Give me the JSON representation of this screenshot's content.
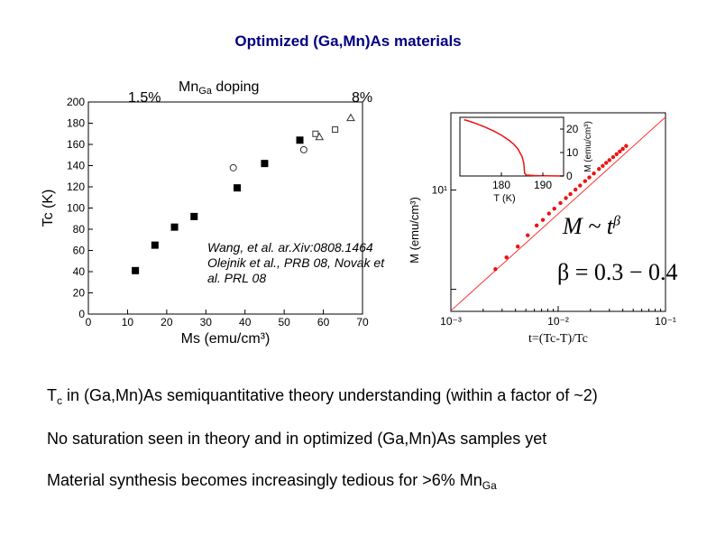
{
  "slide": {
    "title": "Optimized (Ga,Mn)As materials",
    "label_low": "1.5%",
    "label_doping_main": "Mn",
    "label_doping_sub": "Ga",
    "label_doping_rest": " doping",
    "label_high": "8%",
    "citation": "Wang, et al. ar.Xiv:0808.1464 Olejnik et al., PRB 08, Novak et al. PRL 08",
    "formula_1_main": "M",
    "formula_1_rest": "~ t",
    "formula_1_sup": "β",
    "formula_2": "β = 0.3 − 0.4",
    "caption_right": "t=(Tc-T)/Tc",
    "bullet_1_pre": "T",
    "bullet_1_sub": "c",
    "bullet_1_post": " in (Ga,Mn)As semiquantitative theory understanding (within a factor of ~2)",
    "bullet_2": "No saturation seen in theory and in optimized (Ga,Mn)As samples yet",
    "bullet_3_pre": "Material synthesis becomes increasingly tedious for >6% Mn",
    "bullet_3_sub": "Ga"
  },
  "chart_data": [
    {
      "type": "scatter",
      "xlabel": "Ms (emu/cm³)",
      "ylabel": "Tc (K)",
      "xlim": [
        0,
        70
      ],
      "ylim": [
        0,
        200
      ],
      "xticks": [
        0,
        10,
        20,
        30,
        40,
        50,
        60,
        70
      ],
      "yticks": [
        0,
        20,
        40,
        60,
        80,
        100,
        120,
        140,
        160,
        180,
        200
      ],
      "series": [
        {
          "marker": "filled-square",
          "x": [
            12,
            17,
            22,
            27,
            38,
            45,
            54
          ],
          "y": [
            41,
            65,
            82,
            92,
            119,
            142,
            164
          ]
        },
        {
          "marker": "open-circle",
          "x": [
            37,
            55
          ],
          "y": [
            138,
            155
          ]
        },
        {
          "marker": "open-square",
          "x": [
            58,
            63
          ],
          "y": [
            170,
            174
          ]
        },
        {
          "marker": "open-triangle",
          "x": [
            59,
            67
          ],
          "y": [
            167,
            185
          ]
        }
      ]
    },
    {
      "type": "scatter",
      "xlabel": "",
      "ylabel": "M (emu/cm³)",
      "xscale": "log",
      "yscale": "log",
      "xlim": [
        0.001,
        0.1
      ],
      "ylim": [
        0.6,
        60
      ],
      "xtick_labels": [
        "10⁻³",
        "10⁻²",
        "10⁻¹"
      ],
      "ytick_labels": [
        "10¹"
      ],
      "fit_line": true,
      "series": [
        {
          "marker": "red-dot",
          "x": [
            0.0026,
            0.0033,
            0.0042,
            0.0052,
            0.0063,
            0.0072,
            0.0082,
            0.0092,
            0.0105,
            0.0118,
            0.013,
            0.0145,
            0.016,
            0.0178,
            0.0195,
            0.0215,
            0.024,
            0.026,
            0.028,
            0.03,
            0.0325,
            0.035,
            0.0375,
            0.04,
            0.043
          ],
          "y": [
            1.6,
            2.1,
            2.7,
            3.5,
            4.4,
            5.0,
            5.8,
            6.5,
            7.4,
            8.3,
            9.1,
            10.1,
            11.1,
            12.3,
            13.4,
            14.7,
            16.3,
            17.5,
            18.8,
            20.0,
            21.5,
            23.0,
            24.5,
            26.0,
            27.8
          ]
        }
      ]
    },
    {
      "type": "line",
      "xlabel": "T (K)",
      "ylabel": "M (emu/cm³)",
      "xlim": [
        170,
        195
      ],
      "ylim": [
        0,
        25
      ],
      "xticks": [
        180,
        190
      ],
      "yticks": [
        0,
        10,
        20
      ],
      "series": [
        {
          "x": [
            171,
            172,
            174,
            176,
            178,
            180,
            182,
            183,
            184,
            185,
            185.4,
            185.6,
            186,
            188,
            190,
            195
          ],
          "y": [
            24,
            23.5,
            22.3,
            20.9,
            19.3,
            17.4,
            15.0,
            13.5,
            11.5,
            8.2,
            5.5,
            1.2,
            0.4,
            0.2,
            0.1,
            0
          ]
        }
      ]
    }
  ]
}
